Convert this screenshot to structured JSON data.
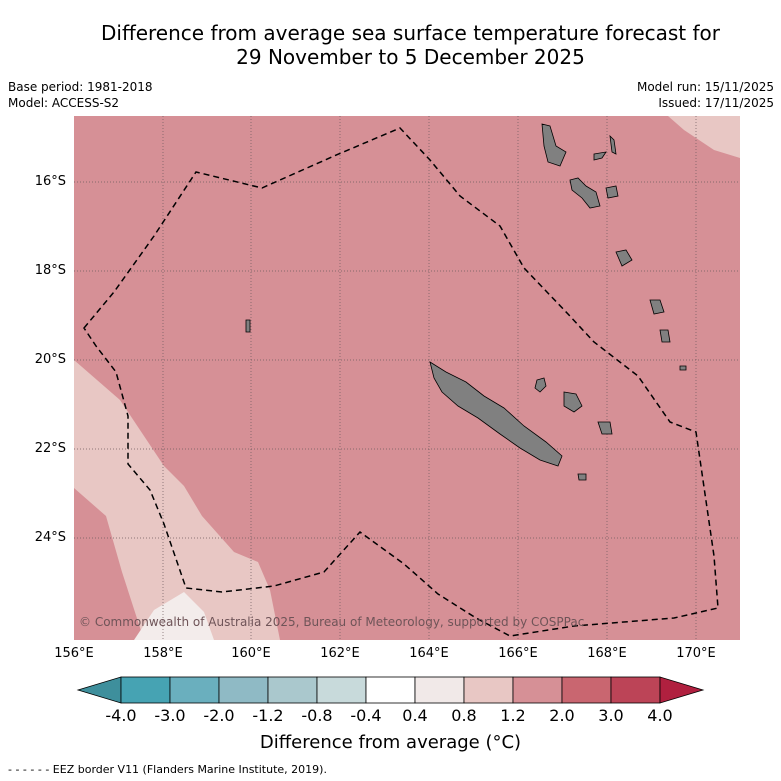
{
  "title": {
    "line1": "Difference from average sea surface temperature forecast for",
    "line2": "29 November to 5 December 2025"
  },
  "meta_left": {
    "base_period": "Base period: 1981-2018",
    "model": "Model: ACCESS-S2"
  },
  "meta_right": {
    "model_run": "Model run: 15/11/2025",
    "issued": "Issued: 17/11/2025"
  },
  "map": {
    "lat_labels": [
      "16°S",
      "18°S",
      "20°S",
      "22°S",
      "24°S"
    ],
    "lon_labels": [
      "156°E",
      "158°E",
      "160°E",
      "162°E",
      "164°E",
      "166°E",
      "168°E",
      "170°E"
    ],
    "copyright": "© Commonwealth of Australia 2025, Bureau of Meteorology, supported by COSPPac"
  },
  "colorbar": {
    "ticks": [
      "-4.0",
      "-3.0",
      "-2.0",
      "-1.2",
      "-0.8",
      "-0.4",
      "0.4",
      "0.8",
      "1.2",
      "2.0",
      "3.0",
      "4.0"
    ],
    "colors": [
      "#3e8f9c",
      "#46a3b3",
      "#6aafbe",
      "#8fbac5",
      "#aac8cd",
      "#c8dadb",
      "#ffffff",
      "#f1e9e8",
      "#e8c7c4",
      "#d69096",
      "#c96670",
      "#bc4457",
      "#b0203f"
    ],
    "label": "Difference from average (°C)"
  },
  "legend": {
    "text": "- -  - -  - - EEZ border V11 (Flanders Marine Institute, 2019)."
  }
}
